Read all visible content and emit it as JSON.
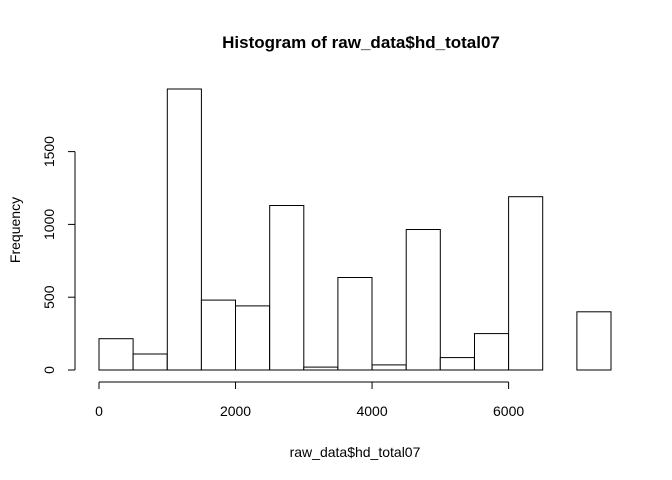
{
  "chart_data": {
    "type": "bar",
    "title": "Histogram of raw_data$hd_total07",
    "xlabel": "raw_data$hd_total07",
    "ylabel": "Frequency",
    "bin_edges": [
      0,
      500,
      1000,
      1500,
      2000,
      2500,
      3000,
      3500,
      4000,
      4500,
      5000,
      5500,
      6000,
      6500,
      7000,
      7500
    ],
    "values": [
      215,
      110,
      1930,
      480,
      440,
      1130,
      20,
      635,
      35,
      965,
      85,
      250,
      1190,
      0,
      400
    ],
    "xlim": [
      0,
      7500
    ],
    "ylim": [
      0,
      1930
    ],
    "xticks": [
      0,
      2000,
      4000,
      6000
    ],
    "xtick_labels": [
      "0",
      "2000",
      "4000",
      "6000"
    ],
    "yticks": [
      0,
      500,
      1000,
      1500
    ],
    "ytick_labels": [
      "0",
      "500",
      "1000",
      "1500"
    ],
    "grid": false,
    "bar_fill": "#ffffff",
    "bar_stroke": "#000000"
  }
}
